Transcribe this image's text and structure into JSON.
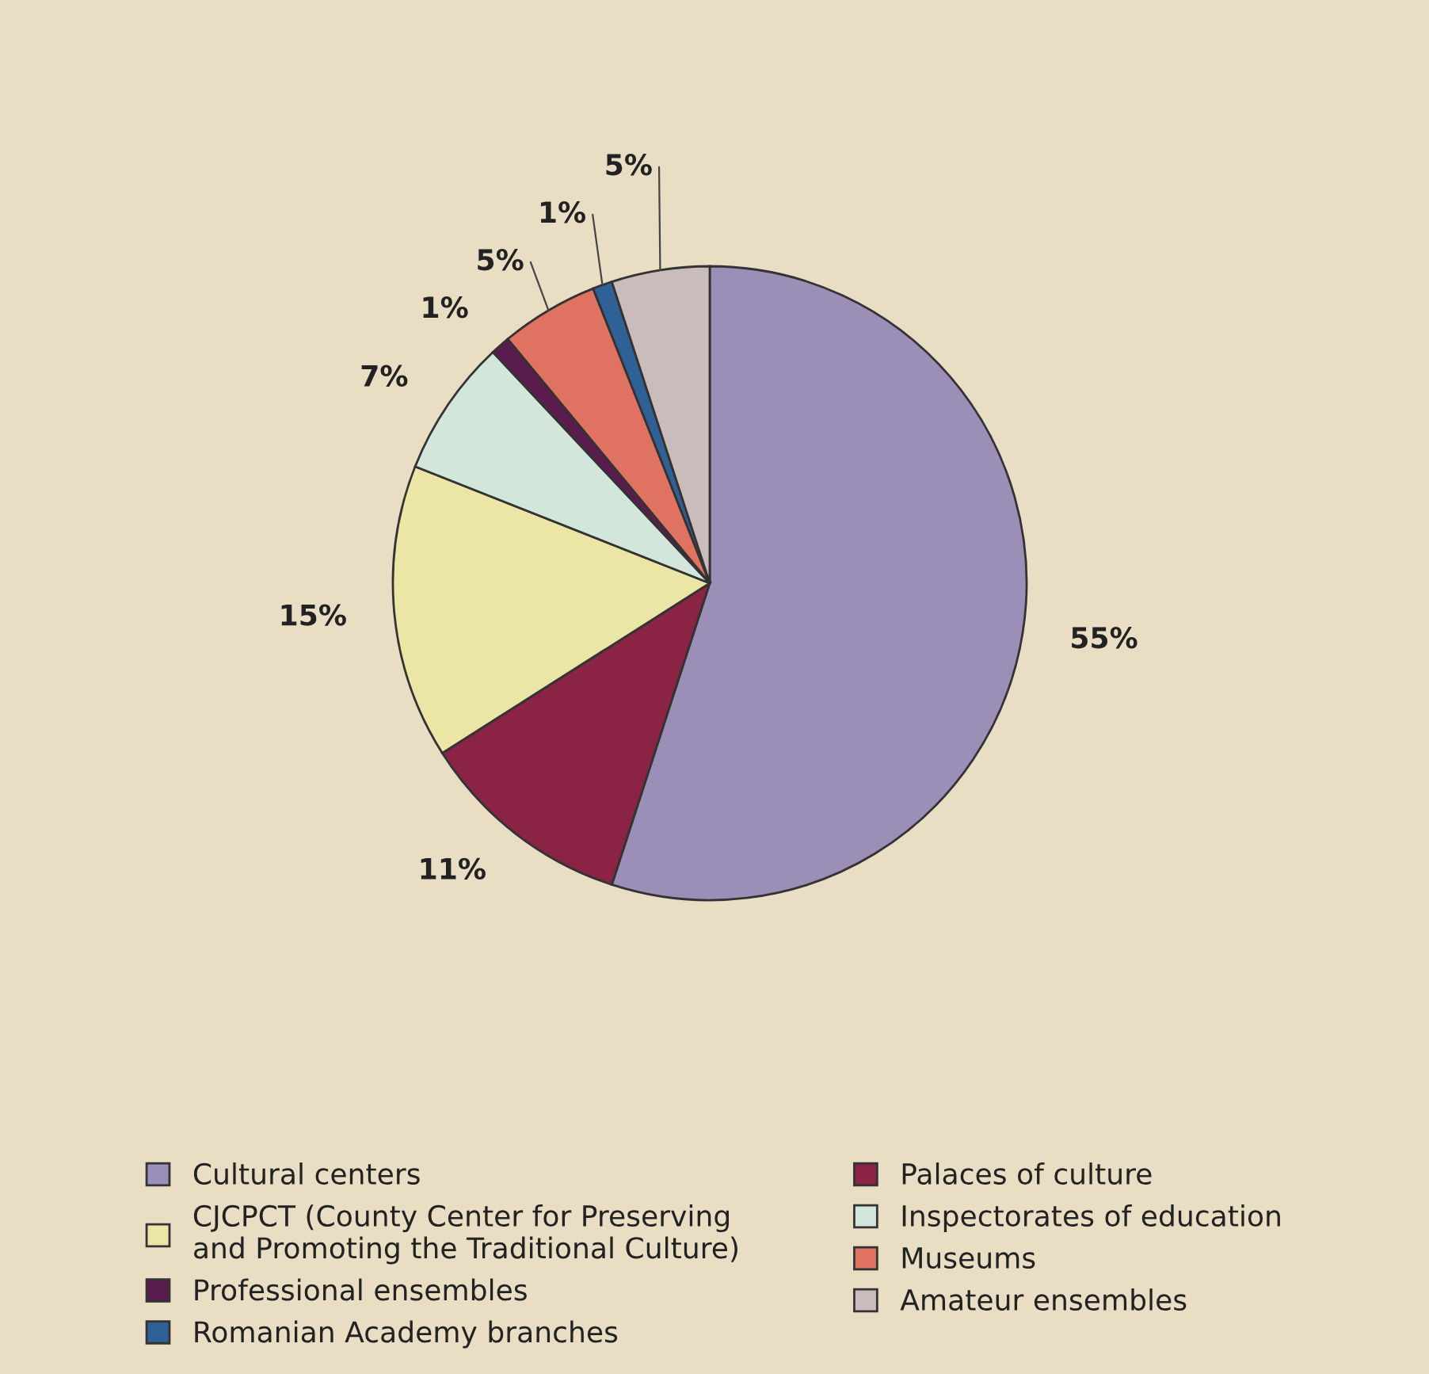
{
  "chart_data": {
    "type": "pie",
    "categories": [
      "Cultural centers",
      "Palaces of culture",
      "CJCPCT (County Center for Preserving\nand Promoting the Traditional Culture)",
      "Inspectorates of education",
      "Professional ensembles",
      "Museums",
      "Romanian Academy branches",
      "Amateur ensembles"
    ],
    "values": [
      55,
      11,
      15,
      7,
      1,
      5,
      1,
      5
    ],
    "colors": [
      "#9b8fb8",
      "#8b2345",
      "#ebe6a6",
      "#d3e6dc",
      "#5a1c4c",
      "#e07262",
      "#2f6196",
      "#cbbcbc"
    ],
    "value_labels": [
      "55%",
      "11%",
      "15%",
      "7%",
      "1%",
      "5%",
      "1%",
      "5%"
    ],
    "legend": "bottom"
  }
}
